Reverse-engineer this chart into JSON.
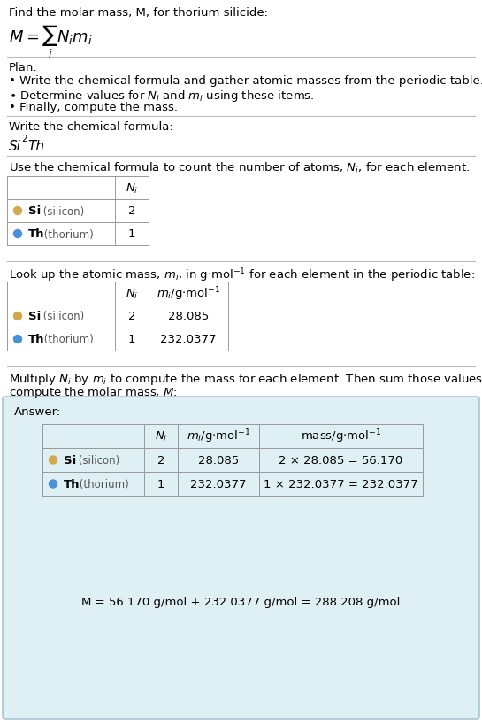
{
  "title_text": "Find the molar mass, M, for thorium silicide:",
  "bg_color": "#ffffff",
  "section_line_color": "#bbbbbb",
  "answer_box_color": "#dff0f5",
  "answer_box_border": "#99bbcc",
  "table_line_color": "#999999",
  "si_dot_color": "#d4a84b",
  "th_dot_color": "#4a90d9",
  "elements": [
    "Si (silicon)",
    "Th (thorium)"
  ],
  "Ni": [
    2,
    1
  ],
  "mi": [
    "28.085",
    "232.0377"
  ],
  "mass_eq_si": "2 × 28.085 = 56.170",
  "mass_eq_th": "1 × 232.0377 = 232.0377",
  "final_eq": "M = 56.170 g/mol + 232.0377 g/mol = 288.208 g/mol",
  "answer_label": "Answer:",
  "font_size": 9.5,
  "font_size_small": 8.5,
  "font_size_formula": 13
}
